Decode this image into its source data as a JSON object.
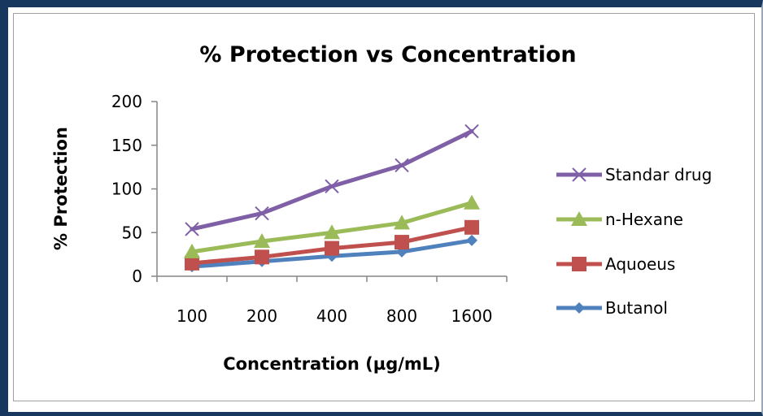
{
  "chart_data": {
    "type": "line",
    "title": "% Protection vs Concentration",
    "xlabel": "Concentration (µg/mL)",
    "ylabel": "% Protection",
    "categories": [
      "100",
      "200",
      "400",
      "800",
      "1600"
    ],
    "ylim": [
      0,
      200
    ],
    "yticks": [
      "0",
      "50",
      "100",
      "150",
      "200"
    ],
    "grid": false,
    "legend_position": "right",
    "series": [
      {
        "name": "Standar drug",
        "values": [
          54,
          72,
          103,
          127,
          166
        ],
        "color": "#7f5fa6",
        "marker": "x-mark"
      },
      {
        "name": "n-Hexane",
        "values": [
          28,
          40,
          50,
          61,
          84
        ],
        "color": "#9bbb59",
        "marker": "triangle"
      },
      {
        "name": "Aquoeus",
        "values": [
          15,
          22,
          32,
          39,
          56
        ],
        "color": "#c0504d",
        "marker": "square"
      },
      {
        "name": "Butanol",
        "values": [
          11,
          17,
          23,
          28,
          41
        ],
        "color": "#4f81bd",
        "marker": "diamond"
      }
    ]
  }
}
